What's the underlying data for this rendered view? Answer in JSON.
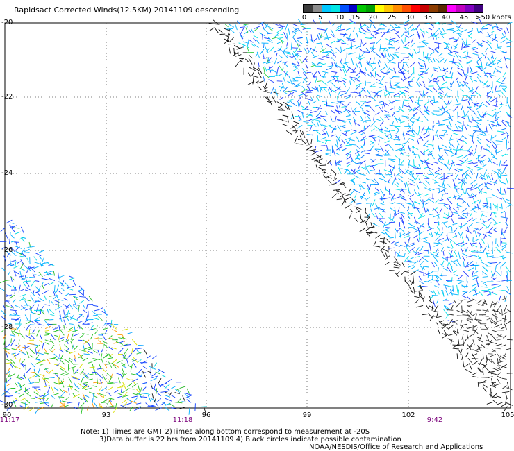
{
  "title": "Rapidsact Corrected Winds(12.5KM) 20141109 descending",
  "legend": {
    "labels": [
      "0",
      "5",
      "10",
      "15",
      "20",
      "25",
      "30",
      "35",
      "40",
      "45",
      ">50 knots"
    ],
    "colors": [
      "#3c3c3c",
      "#8c8c8c",
      "#00c8ff",
      "#00e6e6",
      "#0050ff",
      "#0000c8",
      "#00c800",
      "#00a000",
      "#ffff00",
      "#ffc800",
      "#ff8c00",
      "#ff5000",
      "#ff0000",
      "#c80000",
      "#8c3c00",
      "#5a2800",
      "#ff00ff",
      "#c000c0",
      "#8000c0",
      "#400080"
    ]
  },
  "axes": {
    "lat_labels": [
      "-20",
      "-22",
      "-24",
      "-26",
      "-28",
      "-30"
    ],
    "lon_labels": [
      "90",
      "93",
      "96",
      "99",
      "102",
      "105"
    ],
    "time_labels": [
      "11:17",
      "11:18",
      "9:42"
    ]
  },
  "notes": {
    "line1": "Note: 1) Times are GMT 2)Times along bottom correspond to measurement at -20S",
    "line2": "3)Data buffer is 22 hrs from 20141109 4) Black circles indicate possible contamination",
    "credit": "NOAA/NESDIS/Office of Research and Applications"
  }
}
